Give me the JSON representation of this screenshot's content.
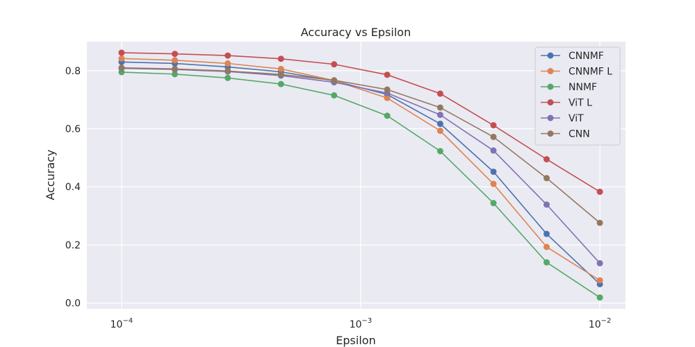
{
  "chart_data": {
    "type": "line",
    "title": "Accuracy vs Epsilon",
    "xlabel": "Epsilon",
    "ylabel": "Accuracy",
    "x_scale": "log",
    "xlim": [
      7.16e-05,
      0.0128
    ],
    "ylim": [
      -0.02,
      0.9
    ],
    "x_ticks": [
      {
        "value": 0.0001,
        "base": "10",
        "exp": "−4"
      },
      {
        "value": 0.001,
        "base": "10",
        "exp": "−3"
      },
      {
        "value": 0.01,
        "base": "10",
        "exp": "−2"
      }
    ],
    "y_ticks": [
      0.0,
      0.2,
      0.4,
      0.6,
      0.8
    ],
    "y_tick_labels": [
      "0.0",
      "0.2",
      "0.4",
      "0.6",
      "0.8"
    ],
    "grid": true,
    "legend_position": "top-right",
    "x": [
      0.0001,
      0.000167,
      0.000278,
      0.000464,
      0.000774,
      0.00129,
      0.00215,
      0.00359,
      0.00599,
      0.01
    ],
    "series": [
      {
        "name": "CNNMF",
        "color": "#4c72b0",
        "values": [
          0.83,
          0.825,
          0.813,
          0.796,
          0.765,
          0.718,
          0.617,
          0.452,
          0.238,
          0.065
        ]
      },
      {
        "name": "CNNMF L",
        "color": "#dd8452",
        "values": [
          0.842,
          0.836,
          0.825,
          0.806,
          0.766,
          0.706,
          0.593,
          0.41,
          0.193,
          0.078
        ]
      },
      {
        "name": "NNMF",
        "color": "#55a868",
        "values": [
          0.795,
          0.788,
          0.775,
          0.754,
          0.715,
          0.645,
          0.523,
          0.344,
          0.14,
          0.019
        ]
      },
      {
        "name": "ViT L",
        "color": "#c44e52",
        "values": [
          0.862,
          0.858,
          0.852,
          0.841,
          0.822,
          0.786,
          0.721,
          0.612,
          0.495,
          0.383
        ]
      },
      {
        "name": "ViT",
        "color": "#8172b3",
        "values": [
          0.808,
          0.804,
          0.797,
          0.783,
          0.76,
          0.723,
          0.648,
          0.525,
          0.339,
          0.137
        ]
      },
      {
        "name": "CNN",
        "color": "#937860",
        "values": [
          0.81,
          0.806,
          0.799,
          0.787,
          0.767,
          0.735,
          0.673,
          0.572,
          0.43,
          0.276
        ]
      }
    ]
  }
}
